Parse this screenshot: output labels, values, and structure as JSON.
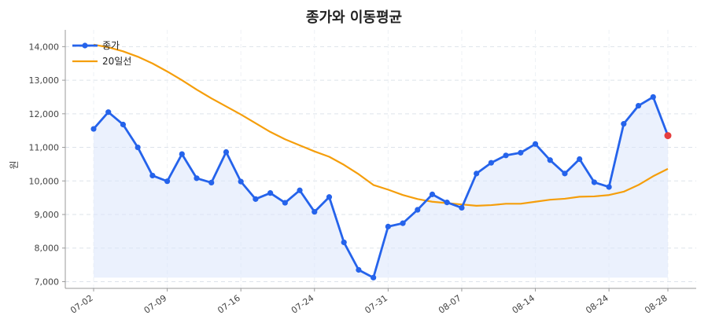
{
  "chart_data": {
    "type": "line",
    "title": "종가와 이동평균",
    "xlabel": "",
    "ylabel": "원",
    "ylim": [
      6800,
      14500
    ],
    "yticks": [
      "7,000",
      "8,000",
      "9,000",
      "10,000",
      "11,000",
      "12,000",
      "13,000",
      "14,000"
    ],
    "ytick_values": [
      7000,
      8000,
      9000,
      10000,
      11000,
      12000,
      13000,
      14000
    ],
    "xtick_labels": [
      "07-02",
      "07-09",
      "07-16",
      "07-24",
      "07-31",
      "08-07",
      "08-14",
      "08-24",
      "08-28"
    ],
    "xtick_indices": [
      0,
      5,
      10,
      15,
      20,
      25,
      30,
      35,
      39
    ],
    "grid": true,
    "legend_placement": "top-left",
    "x": [
      0,
      1,
      2,
      3,
      4,
      5,
      6,
      7,
      8,
      9,
      10,
      11,
      12,
      13,
      14,
      15,
      16,
      17,
      18,
      19,
      20,
      21,
      22,
      23,
      24,
      25,
      26,
      27,
      28,
      29,
      30,
      31,
      32,
      33,
      34,
      35,
      36,
      37,
      38,
      39
    ],
    "series": [
      {
        "name": "종가",
        "color": "#2563eb",
        "style": "line-marker-area",
        "values": [
          11550,
          12050,
          11680,
          11000,
          10160,
          9990,
          10800,
          10080,
          9950,
          10860,
          9980,
          9460,
          9640,
          9350,
          9720,
          9080,
          9520,
          8170,
          7350,
          7120,
          8640,
          8740,
          9140,
          9600,
          9360,
          9200,
          10220,
          10540,
          10760,
          10840,
          11100,
          10620,
          10220,
          10650,
          9960,
          9820,
          11700,
          12240,
          12500,
          11350
        ]
      },
      {
        "name": "20일선",
        "color": "#f59e0b",
        "style": "line",
        "values": [
          14060,
          13980,
          13860,
          13700,
          13500,
          13260,
          13000,
          12720,
          12460,
          12220,
          11980,
          11720,
          11460,
          11240,
          11060,
          10880,
          10720,
          10480,
          10200,
          9880,
          9740,
          9580,
          9460,
          9380,
          9340,
          9300,
          9260,
          9280,
          9320,
          9320,
          9380,
          9440,
          9470,
          9530,
          9540,
          9580,
          9680,
          9880,
          10140,
          10360
        ]
      }
    ],
    "last_point_marker_color": "#e53e3e"
  }
}
